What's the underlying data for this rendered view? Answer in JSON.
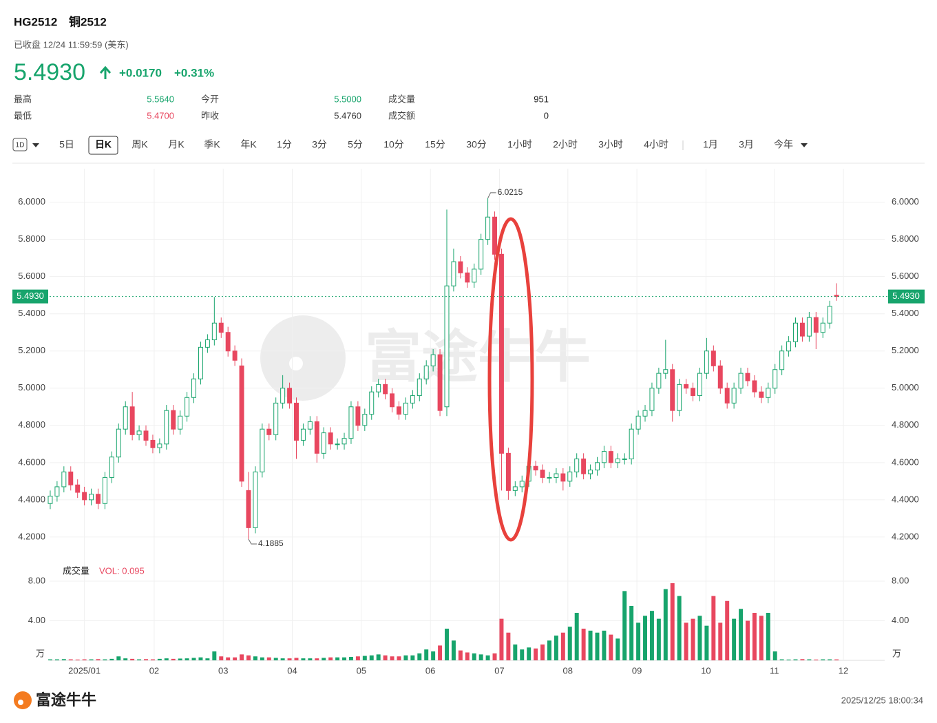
{
  "header": {
    "code": "HG2512",
    "name": "铜2512",
    "status": "已收盘 12/24 11:59:59 (美东)",
    "price": "5.4930",
    "change": "+0.0170",
    "change_pct": "+0.31%",
    "stats": [
      {
        "label": "最高",
        "value": "5.5640"
      },
      {
        "label": "最低",
        "value": "5.4700"
      },
      {
        "label": "今开",
        "value": "5.5000"
      },
      {
        "label": "昨收",
        "value": "5.4760"
      },
      {
        "label": "成交量",
        "value": "951"
      },
      {
        "label": "成交额",
        "value": "0"
      }
    ]
  },
  "toolbar": {
    "interval_icon": "1D",
    "tabs": [
      "5日",
      "日K",
      "周K",
      "月K",
      "季K",
      "年K",
      "1分",
      "3分",
      "5分",
      "10分",
      "15分",
      "30分",
      "1小时",
      "2小时",
      "3小时",
      "4小时",
      "1月",
      "3月",
      "今年"
    ],
    "selected_index": 1
  },
  "chart_data": {
    "type": "candlestick",
    "up_color": "#17a46c",
    "down_color": "#e8475f",
    "grid": true,
    "xlim": [
      -0.5,
      116.5
    ],
    "xticks": [
      {
        "value": 5,
        "label": "2025/01"
      },
      {
        "value": 15.2,
        "label": "02"
      },
      {
        "value": 25.3,
        "label": "03"
      },
      {
        "value": 35.4,
        "label": "04"
      },
      {
        "value": 45.5,
        "label": "05"
      },
      {
        "value": 55.6,
        "label": "06"
      },
      {
        "value": 65.7,
        "label": "07"
      },
      {
        "value": 75.7,
        "label": "08"
      },
      {
        "value": 85.8,
        "label": "09"
      },
      {
        "value": 95.9,
        "label": "10"
      },
      {
        "value": 105.9,
        "label": "11"
      },
      {
        "value": 116,
        "label": "12"
      }
    ],
    "ylim": [
      4.07,
      6.18
    ],
    "yticks": [
      {
        "value": 4.2,
        "label": "4.2000"
      },
      {
        "value": 4.4,
        "label": "4.4000"
      },
      {
        "value": 4.6,
        "label": "4.6000"
      },
      {
        "value": 4.8,
        "label": "4.8000"
      },
      {
        "value": 5.0,
        "label": "5.0000"
      },
      {
        "value": 5.2,
        "label": "5.2000"
      },
      {
        "value": 5.4,
        "label": "5.4000"
      },
      {
        "value": 5.6,
        "label": "5.6000"
      },
      {
        "value": 5.8,
        "label": "5.8000"
      },
      {
        "value": 6.0,
        "label": "6.0000"
      }
    ],
    "last_price": {
      "value": 5.493,
      "label": "5.4930"
    },
    "open": [
      4.38,
      4.42,
      4.47,
      4.55,
      4.48,
      4.44,
      4.4,
      4.43,
      4.38,
      4.52,
      4.63,
      4.78,
      4.9,
      4.75,
      4.77,
      4.72,
      4.68,
      4.7,
      4.88,
      4.78,
      4.85,
      4.95,
      5.05,
      5.22,
      5.26,
      5.35,
      5.3,
      5.2,
      5.12,
      4.45,
      4.25,
      4.55,
      4.78,
      4.75,
      4.92,
      5.0,
      4.92,
      4.72,
      4.78,
      4.82,
      4.65,
      4.76,
      4.7,
      4.7,
      4.73,
      4.9,
      4.8,
      4.86,
      4.98,
      5.02,
      4.97,
      4.9,
      4.86,
      4.92,
      4.96,
      5.05,
      5.12,
      5.18,
      4.9,
      5.55,
      5.68,
      5.62,
      5.57,
      5.64,
      5.8,
      5.92,
      5.72,
      4.65,
      4.45,
      4.47,
      4.5,
      4.58,
      4.56,
      4.52,
      4.52,
      4.54,
      4.5,
      4.55,
      4.62,
      4.54,
      4.56,
      4.6,
      4.66,
      4.6,
      4.62,
      4.62,
      4.78,
      4.85,
      4.88,
      5.0,
      5.08,
      5.1,
      4.88,
      5.02,
      5.0,
      4.96,
      5.08,
      5.2,
      5.12,
      5.0,
      4.92,
      5.0,
      5.08,
      5.04,
      4.98,
      4.95,
      5.0,
      5.1,
      5.2,
      5.25,
      5.35,
      5.28,
      5.38,
      5.3,
      5.35,
      5.5
    ],
    "high": [
      4.45,
      4.5,
      4.58,
      4.58,
      4.51,
      4.47,
      4.46,
      4.46,
      4.55,
      4.66,
      4.81,
      4.93,
      4.98,
      4.8,
      4.8,
      4.75,
      4.73,
      4.91,
      4.91,
      4.88,
      4.98,
      5.08,
      5.25,
      5.29,
      5.49,
      5.38,
      5.33,
      5.23,
      5.16,
      4.55,
      4.58,
      4.81,
      4.81,
      4.95,
      5.07,
      5.03,
      4.95,
      4.81,
      4.85,
      4.85,
      4.79,
      4.79,
      4.73,
      4.76,
      4.93,
      4.93,
      4.89,
      5.01,
      5.05,
      5.05,
      5.0,
      4.93,
      4.95,
      4.99,
      5.08,
      5.15,
      5.21,
      5.21,
      5.96,
      5.75,
      5.71,
      5.65,
      5.67,
      5.83,
      6.0215,
      5.95,
      5.75,
      4.68,
      4.5,
      4.53,
      4.61,
      4.61,
      4.59,
      4.55,
      4.57,
      4.57,
      4.58,
      4.65,
      4.65,
      4.59,
      4.63,
      4.69,
      4.69,
      4.65,
      4.65,
      4.81,
      4.88,
      4.91,
      5.03,
      5.11,
      5.26,
      5.13,
      5.05,
      5.05,
      5.03,
      5.11,
      5.27,
      5.23,
      5.15,
      5.03,
      5.03,
      5.11,
      5.11,
      5.07,
      5.01,
      5.03,
      5.13,
      5.23,
      5.28,
      5.38,
      5.38,
      5.41,
      5.41,
      5.38,
      5.47,
      5.564
    ],
    "low": [
      4.35,
      4.39,
      4.44,
      4.45,
      4.41,
      4.37,
      4.37,
      4.35,
      4.35,
      4.49,
      4.6,
      4.75,
      4.72,
      4.72,
      4.69,
      4.65,
      4.65,
      4.67,
      4.75,
      4.75,
      4.82,
      4.92,
      5.02,
      5.19,
      5.23,
      5.27,
      5.17,
      5.12,
      4.47,
      4.1885,
      4.22,
      4.52,
      4.72,
      4.72,
      4.89,
      4.89,
      4.62,
      4.69,
      4.75,
      4.6,
      4.62,
      4.67,
      4.67,
      4.67,
      4.7,
      4.77,
      4.77,
      4.83,
      4.95,
      4.94,
      4.87,
      4.83,
      4.83,
      4.89,
      4.93,
      5.02,
      5.09,
      4.85,
      4.85,
      5.52,
      5.59,
      5.54,
      5.54,
      5.61,
      5.77,
      5.69,
      4.45,
      4.4,
      4.42,
      4.44,
      4.47,
      4.53,
      4.49,
      4.49,
      4.49,
      4.45,
      4.47,
      4.52,
      4.51,
      4.51,
      4.53,
      4.57,
      4.57,
      4.57,
      4.59,
      4.59,
      4.75,
      4.82,
      4.85,
      4.97,
      5.05,
      4.82,
      4.85,
      4.97,
      4.93,
      4.93,
      5.05,
      5.09,
      4.97,
      4.89,
      4.89,
      4.97,
      5.01,
      4.95,
      4.92,
      4.92,
      4.97,
      5.07,
      5.17,
      5.22,
      5.25,
      5.25,
      5.21,
      5.27,
      5.32,
      5.47
    ],
    "close": [
      4.42,
      4.47,
      4.55,
      4.48,
      4.44,
      4.4,
      4.43,
      4.38,
      4.52,
      4.63,
      4.78,
      4.9,
      4.75,
      4.77,
      4.72,
      4.68,
      4.7,
      4.88,
      4.78,
      4.85,
      4.95,
      5.05,
      5.22,
      5.26,
      5.35,
      5.3,
      5.2,
      5.15,
      4.5,
      4.25,
      4.55,
      4.78,
      4.75,
      4.92,
      5.0,
      4.92,
      4.72,
      4.78,
      4.82,
      4.65,
      4.76,
      4.7,
      4.7,
      4.73,
      4.9,
      4.8,
      4.86,
      4.98,
      5.02,
      4.97,
      4.9,
      4.86,
      4.92,
      4.96,
      5.05,
      5.12,
      5.18,
      4.88,
      5.55,
      5.68,
      5.62,
      5.57,
      5.64,
      5.8,
      5.92,
      5.72,
      4.65,
      4.45,
      4.47,
      4.5,
      4.58,
      4.56,
      4.52,
      4.52,
      4.54,
      4.5,
      4.55,
      4.62,
      4.54,
      4.56,
      4.6,
      4.66,
      4.6,
      4.62,
      4.62,
      4.78,
      4.85,
      4.88,
      5.0,
      5.08,
      5.1,
      4.88,
      5.02,
      5.0,
      4.96,
      5.08,
      5.2,
      5.12,
      5.0,
      4.92,
      5.0,
      5.08,
      5.04,
      4.98,
      4.95,
      5.0,
      5.1,
      5.2,
      5.25,
      5.35,
      5.28,
      5.38,
      5.3,
      5.35,
      5.44,
      5.493
    ],
    "volume_title": "成交量",
    "volume_label": "VOL: 0.095",
    "vol_unit": "万",
    "vol_ylim": [
      0,
      9.6
    ],
    "vol_yticks": [
      {
        "value": 4,
        "label": "4.00"
      },
      {
        "value": 8,
        "label": "8.00"
      }
    ],
    "volume": [
      0.1,
      0.1,
      0.12,
      0.1,
      0.08,
      0.1,
      0.1,
      0.12,
      0.1,
      0.15,
      0.4,
      0.2,
      0.15,
      0.1,
      0.12,
      0.1,
      0.15,
      0.2,
      0.15,
      0.18,
      0.2,
      0.25,
      0.3,
      0.2,
      0.9,
      0.4,
      0.3,
      0.3,
      0.6,
      0.5,
      0.4,
      0.3,
      0.3,
      0.25,
      0.2,
      0.2,
      0.25,
      0.2,
      0.2,
      0.2,
      0.25,
      0.3,
      0.3,
      0.3,
      0.35,
      0.4,
      0.45,
      0.5,
      0.6,
      0.5,
      0.4,
      0.4,
      0.5,
      0.5,
      0.7,
      1.1,
      0.9,
      1.5,
      3.2,
      2.0,
      1.0,
      0.8,
      0.7,
      0.6,
      0.5,
      0.7,
      4.2,
      2.8,
      1.6,
      1.1,
      1.3,
      1.2,
      1.6,
      2.0,
      2.5,
      2.8,
      3.4,
      4.8,
      3.2,
      3.0,
      2.8,
      3.0,
      2.6,
      2.2,
      7.0,
      5.5,
      3.8,
      4.5,
      5.0,
      4.2,
      7.2,
      7.8,
      6.5,
      3.8,
      4.2,
      4.5,
      3.5,
      6.5,
      3.8,
      6.0,
      4.2,
      5.2,
      4.0,
      4.8,
      4.5,
      4.8,
      0.9,
      0.1,
      0.08,
      0.1,
      0.12,
      0.1,
      0.08,
      0.1,
      0.1,
      0.095
    ],
    "watermark": "富途牛牛"
  },
  "footer": {
    "brand": "富途牛牛",
    "timestamp": "2025/12/25 18:00:34"
  }
}
